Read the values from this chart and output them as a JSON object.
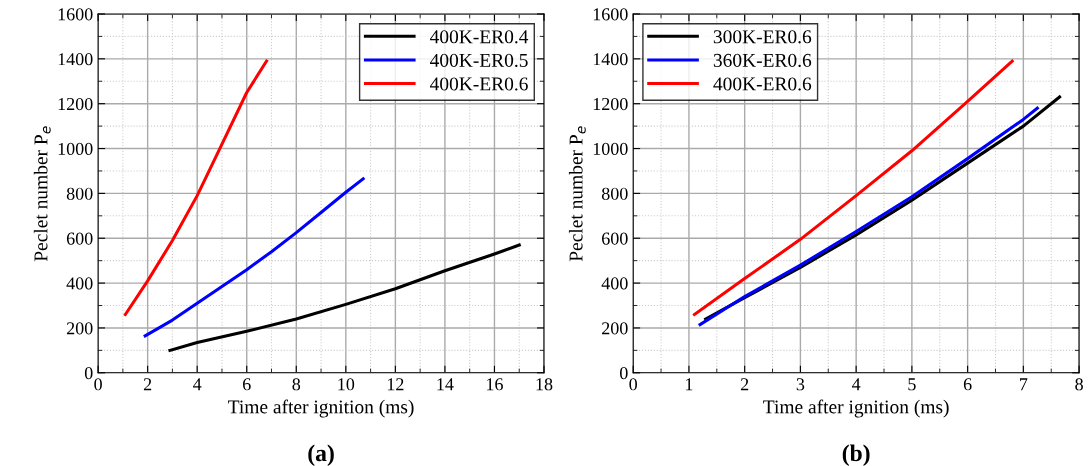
{
  "chart_data": [
    {
      "type": "line",
      "title": "(a)",
      "xlabel": "Time after ignition (ms)",
      "ylabel": "Peclet number P$_{e}$",
      "xlim": [
        0,
        18
      ],
      "xticks": [
        0,
        2,
        4,
        6,
        8,
        10,
        12,
        14,
        16,
        18
      ],
      "ylim": [
        0,
        1600
      ],
      "yticks": [
        0,
        200,
        400,
        600,
        800,
        1000,
        1200,
        1400,
        1600
      ],
      "grid": true,
      "legend": "top right",
      "line_style": "solid",
      "marker": "none",
      "series": [
        {
          "name": "400K-ER0.4",
          "color": "#000000",
          "x": [
            2.9,
            4,
            6,
            8,
            10,
            12,
            14,
            16,
            17
          ],
          "values": [
            100,
            135,
            185,
            240,
            305,
            375,
            455,
            530,
            570
          ]
        },
        {
          "name": "400K-ER0.5",
          "color": "#0000ff",
          "x": [
            1.9,
            3,
            4,
            5,
            6,
            7,
            8,
            9,
            10,
            10.7
          ],
          "values": [
            165,
            235,
            310,
            385,
            460,
            540,
            625,
            715,
            805,
            865
          ]
        },
        {
          "name": "400K-ER0.6",
          "color": "#ff0000",
          "x": [
            1.1,
            2,
            3,
            4,
            5,
            6,
            6.8
          ],
          "values": [
            260,
            410,
            590,
            790,
            1020,
            1250,
            1390
          ]
        }
      ]
    },
    {
      "type": "line",
      "title": "(b)",
      "xlabel": "Time after ignition (ms)",
      "ylabel": "Peclet number P$_{e}$",
      "xlim": [
        0,
        8
      ],
      "xticks": [
        0,
        1,
        2,
        3,
        4,
        5,
        6,
        7,
        8
      ],
      "ylim": [
        0,
        1600
      ],
      "yticks": [
        0,
        200,
        400,
        600,
        800,
        1000,
        1200,
        1400,
        1600
      ],
      "grid": true,
      "legend": "top left",
      "line_style": "solid",
      "marker": "none",
      "series": [
        {
          "name": "300K-ER0.6",
          "color": "#000000",
          "x": [
            1.3,
            2,
            3,
            4,
            5,
            6,
            7,
            7.65
          ],
          "values": [
            240,
            335,
            470,
            615,
            770,
            935,
            1100,
            1230
          ]
        },
        {
          "name": "360K-ER0.6",
          "color": "#0000ff",
          "x": [
            1.2,
            2,
            3,
            4,
            5,
            6,
            7,
            7.25
          ],
          "values": [
            215,
            340,
            480,
            630,
            785,
            955,
            1130,
            1180
          ]
        },
        {
          "name": "400K-ER0.6",
          "color": "#ff0000",
          "x": [
            1.1,
            2,
            3,
            4,
            5,
            6,
            6.8
          ],
          "values": [
            260,
            420,
            595,
            790,
            990,
            1210,
            1390
          ]
        }
      ]
    }
  ]
}
